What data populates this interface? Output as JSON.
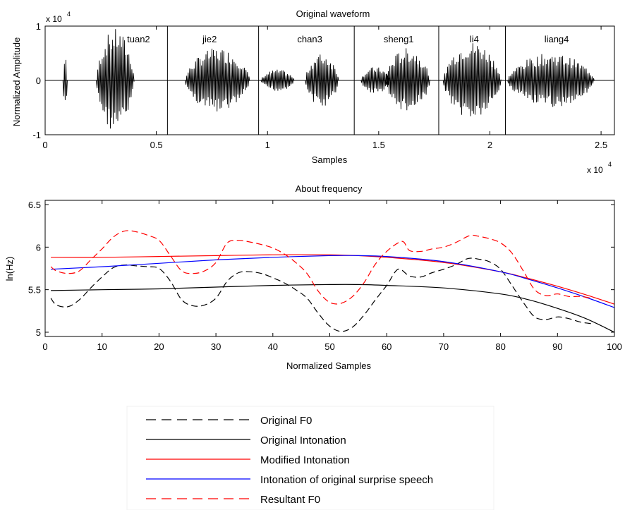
{
  "chart_data": [
    {
      "type": "line",
      "title": "Original waveform",
      "xlabel": "Samples",
      "ylabel": "Normalized Amplitude",
      "x_exponent_label": "x 10",
      "x_exponent": "4",
      "y_exponent_label": "x 10",
      "y_exponent": "4",
      "xlim": [
        0,
        2.56
      ],
      "ylim": [
        -1,
        1
      ],
      "x_ticks": [
        0,
        0.5,
        1,
        1.5,
        2,
        2.5
      ],
      "x_tick_labels": [
        "0",
        "0.5",
        "1",
        "1.5",
        "2",
        "2.5"
      ],
      "y_ticks": [
        -1,
        0,
        1
      ],
      "y_tick_labels": [
        "-1",
        "0",
        "1"
      ],
      "grid": false,
      "segment_boundaries": [
        0.55,
        0.96,
        1.39,
        1.77,
        2.07
      ],
      "syllables": [
        {
          "label": "tuan2",
          "x": 0.42
        },
        {
          "label": "jie2",
          "x": 0.74
        },
        {
          "label": "chan3",
          "x": 1.19
        },
        {
          "label": "sheng1",
          "x": 1.59
        },
        {
          "label": "li4",
          "x": 1.93
        },
        {
          "label": "liang4",
          "x": 2.3
        }
      ],
      "bursts": [
        {
          "start": 0.08,
          "end": 0.1,
          "amp": 0.55
        },
        {
          "start": 0.23,
          "end": 0.4,
          "amp": 0.95
        },
        {
          "start": 0.63,
          "end": 0.92,
          "amp": 0.6
        },
        {
          "start": 0.97,
          "end": 1.12,
          "amp": 0.2
        },
        {
          "start": 1.17,
          "end": 1.32,
          "amp": 0.5
        },
        {
          "start": 1.42,
          "end": 1.55,
          "amp": 0.25
        },
        {
          "start": 1.53,
          "end": 1.73,
          "amp": 0.6
        },
        {
          "start": 1.79,
          "end": 2.05,
          "amp": 0.72
        },
        {
          "start": 2.08,
          "end": 2.47,
          "amp": 0.5
        }
      ]
    },
    {
      "type": "line",
      "title": "About frequency",
      "xlabel": "Normalized Samples",
      "ylabel": "ln(Hz)",
      "xlim": [
        0,
        100
      ],
      "ylim": [
        4.95,
        6.55
      ],
      "x_ticks": [
        0,
        10,
        20,
        30,
        40,
        50,
        60,
        70,
        80,
        90,
        100
      ],
      "y_ticks": [
        5,
        5.5,
        6,
        6.5
      ],
      "y_tick_labels": [
        "5",
        "5.5",
        "6",
        "6.5"
      ],
      "grid": false,
      "series": [
        {
          "name": "Original F0",
          "color": "#000000",
          "dash": true,
          "x": [
            1,
            2,
            4,
            6,
            8,
            10,
            12,
            14,
            16,
            18,
            20,
            22,
            24,
            26,
            28,
            30,
            32,
            34,
            36,
            38,
            40,
            42,
            44,
            46,
            48,
            50,
            52,
            54,
            56,
            58,
            60,
            62,
            64,
            66,
            68,
            70,
            72,
            74,
            75,
            76,
            78,
            80,
            82,
            84,
            86,
            88,
            90,
            92,
            94,
            96
          ],
          "y": [
            5.4,
            5.32,
            5.3,
            5.38,
            5.52,
            5.65,
            5.76,
            5.79,
            5.78,
            5.77,
            5.75,
            5.6,
            5.38,
            5.31,
            5.32,
            5.4,
            5.6,
            5.7,
            5.71,
            5.69,
            5.64,
            5.58,
            5.5,
            5.4,
            5.22,
            5.07,
            5.01,
            5.06,
            5.2,
            5.38,
            5.55,
            5.74,
            5.66,
            5.65,
            5.7,
            5.74,
            5.79,
            5.86,
            5.87,
            5.86,
            5.83,
            5.74,
            5.55,
            5.35,
            5.18,
            5.15,
            5.18,
            5.16,
            5.12,
            5.1
          ]
        },
        {
          "name": "Original Intonation",
          "color": "#000000",
          "dash": false,
          "x": [
            1,
            10,
            20,
            30,
            40,
            50,
            55,
            60,
            70,
            80,
            85,
            90,
            95,
            100
          ],
          "y": [
            5.49,
            5.5,
            5.51,
            5.53,
            5.55,
            5.56,
            5.56,
            5.55,
            5.52,
            5.45,
            5.38,
            5.28,
            5.16,
            5.0
          ]
        },
        {
          "name": "Modified Intonation",
          "color": "#ff0000",
          "dash": false,
          "x": [
            1,
            10,
            20,
            30,
            40,
            50,
            55,
            60,
            70,
            80,
            85,
            90,
            95,
            100
          ],
          "y": [
            5.88,
            5.88,
            5.89,
            5.9,
            5.91,
            5.91,
            5.9,
            5.88,
            5.82,
            5.71,
            5.63,
            5.54,
            5.44,
            5.33
          ]
        },
        {
          "name": "Intonation of original surprise speech",
          "color": "#0000ff",
          "dash": false,
          "x": [
            1,
            10,
            20,
            30,
            40,
            50,
            55,
            60,
            70,
            80,
            85,
            90,
            95,
            100
          ],
          "y": [
            5.74,
            5.77,
            5.81,
            5.85,
            5.88,
            5.9,
            5.9,
            5.89,
            5.83,
            5.71,
            5.62,
            5.52,
            5.41,
            5.29
          ]
        },
        {
          "name": "Resultant F0",
          "color": "#ff0000",
          "dash": true,
          "x": [
            1,
            2,
            4,
            6,
            8,
            10,
            12,
            14,
            16,
            18,
            20,
            22,
            24,
            26,
            28,
            30,
            32,
            34,
            36,
            38,
            40,
            42,
            44,
            46,
            48,
            50,
            52,
            54,
            56,
            58,
            60,
            62,
            63,
            64,
            66,
            68,
            70,
            72,
            74,
            75,
            76,
            78,
            80,
            82,
            84,
            86,
            88,
            90,
            92,
            94,
            96
          ],
          "y": [
            5.77,
            5.72,
            5.69,
            5.72,
            5.85,
            5.98,
            6.12,
            6.19,
            6.18,
            6.14,
            6.08,
            5.9,
            5.72,
            5.69,
            5.72,
            5.82,
            6.05,
            6.08,
            6.06,
            6.03,
            5.99,
            5.92,
            5.82,
            5.69,
            5.48,
            5.35,
            5.34,
            5.42,
            5.58,
            5.8,
            5.95,
            6.05,
            6.06,
            5.96,
            5.95,
            5.98,
            6.0,
            6.05,
            6.12,
            6.14,
            6.13,
            6.1,
            6.05,
            5.93,
            5.72,
            5.5,
            5.43,
            5.45,
            5.42,
            5.42,
            5.4
          ]
        }
      ]
    }
  ]
}
